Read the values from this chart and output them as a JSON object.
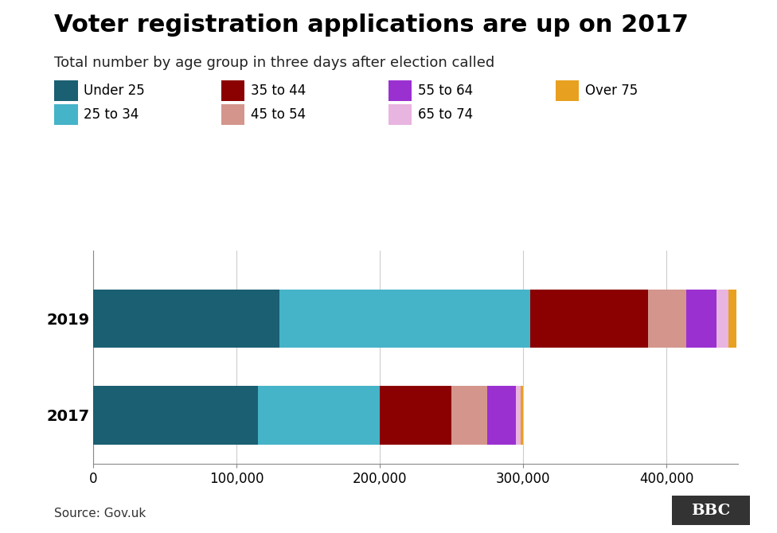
{
  "title": "Voter registration applications are up on 2017",
  "subtitle": "Total number by age group in three days after election called",
  "source": "Source: Gov.uk",
  "years": [
    "2019",
    "2017"
  ],
  "age_groups": [
    "Under 25",
    "25 to 34",
    "35 to 44",
    "45 to 54",
    "55 to 64",
    "65 to 74",
    "Over 75"
  ],
  "colors": [
    "#1a5f72",
    "#45b3c8",
    "#8b0000",
    "#d4968c",
    "#9b30d0",
    "#e8b4e0",
    "#e8a020"
  ],
  "values_2019": [
    130000,
    175000,
    82000,
    27000,
    21000,
    8000,
    6000
  ],
  "values_2017": [
    115000,
    85000,
    50000,
    25000,
    20000,
    3000,
    2000
  ],
  "xlim": [
    0,
    450000
  ],
  "xticks": [
    0,
    100000,
    200000,
    300000,
    400000
  ],
  "xtick_labels": [
    "0",
    "100,000",
    "200,000",
    "300,000",
    "400,000"
  ],
  "background_color": "#ffffff",
  "title_fontsize": 22,
  "subtitle_fontsize": 13,
  "tick_fontsize": 12,
  "ylabel_fontsize": 14,
  "legend_fontsize": 12
}
